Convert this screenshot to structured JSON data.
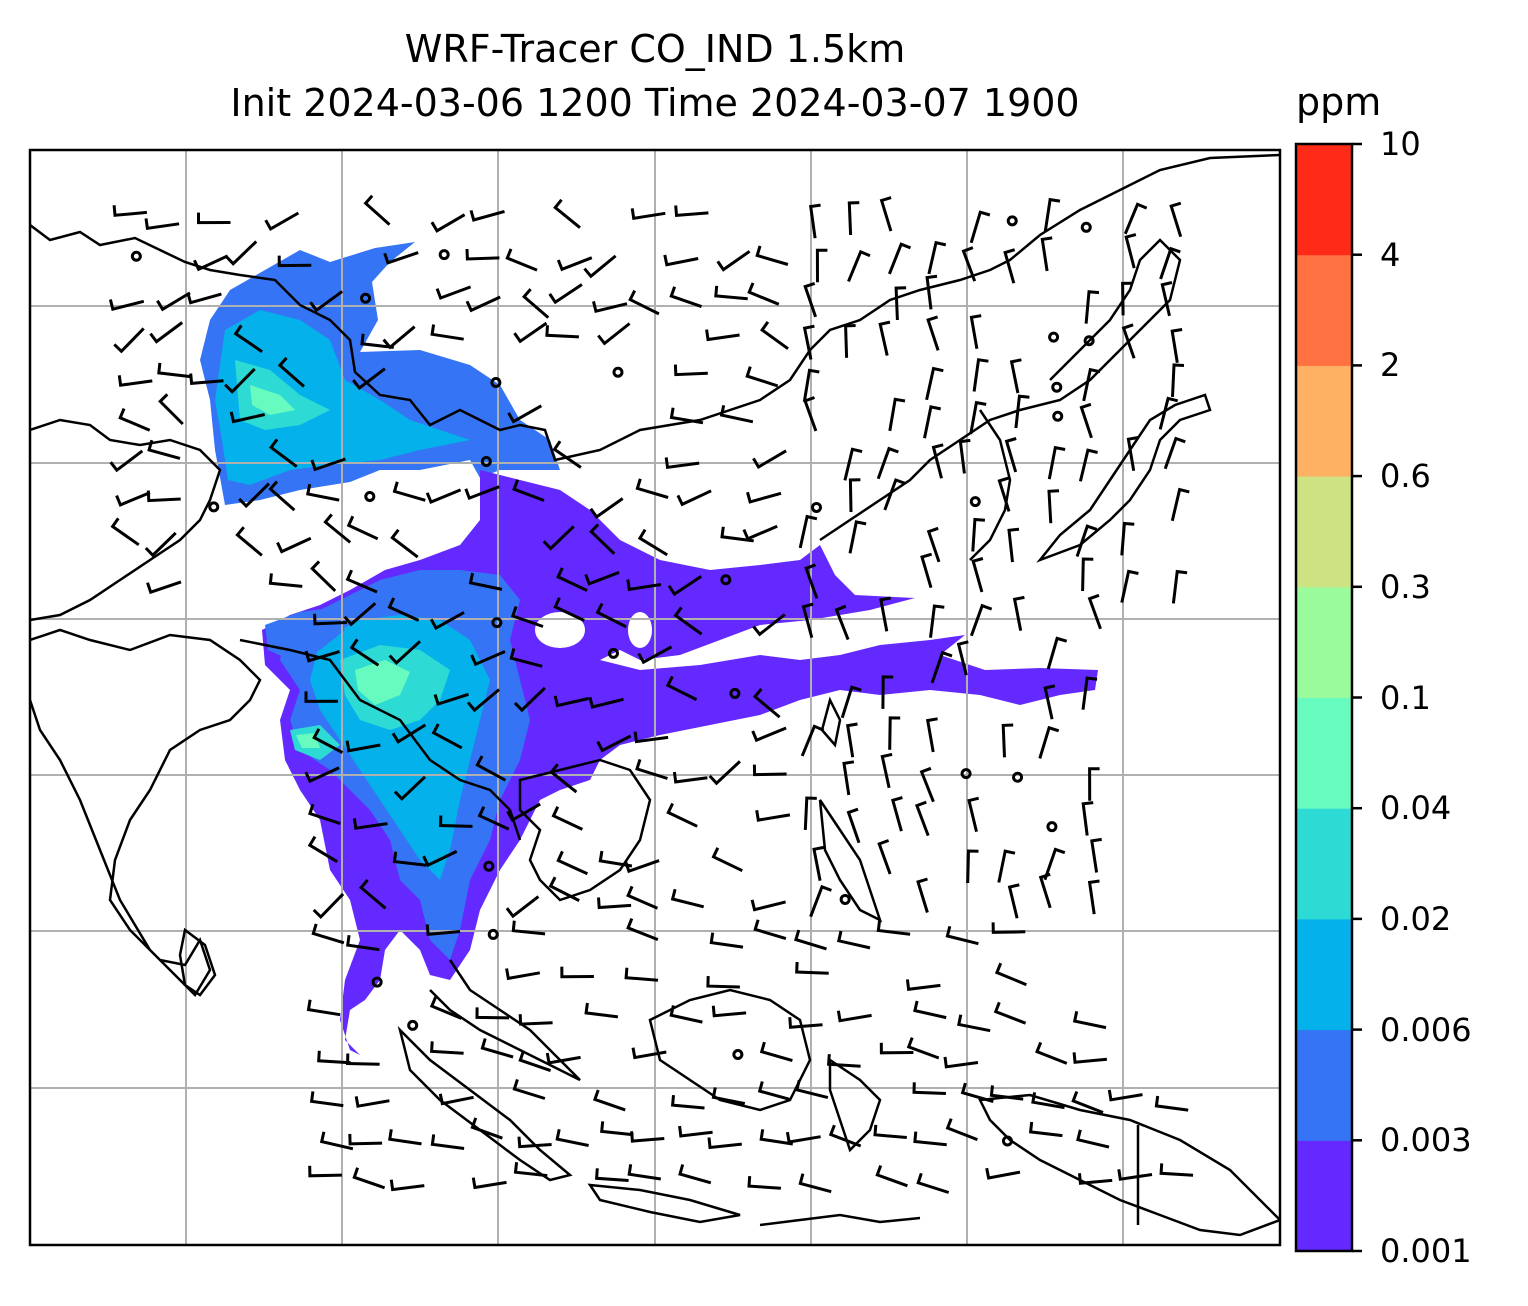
{
  "title_line1": "WRF-Tracer CO_IND 1.5km",
  "title_line2": "Init 2024-03-06 1200 Time 2024-03-07 1900",
  "colorbar": {
    "unit": "ppm",
    "levels": [
      "0.001",
      "0.003",
      "0.006",
      "0.02",
      "0.04",
      "0.1",
      "0.3",
      "0.6",
      "2",
      "4",
      "10"
    ],
    "colors": [
      "#6329ff",
      "#3575f5",
      "#04b1ea",
      "#2edbd4",
      "#67fbc0",
      "#9afb9c",
      "#cde283",
      "#feb063",
      "#ff7140",
      "#ff2a17"
    ]
  },
  "colors": {
    "frame": "#000000",
    "grid": "#b0b0b0",
    "coast": "#000000",
    "barb": "#000000"
  }
}
